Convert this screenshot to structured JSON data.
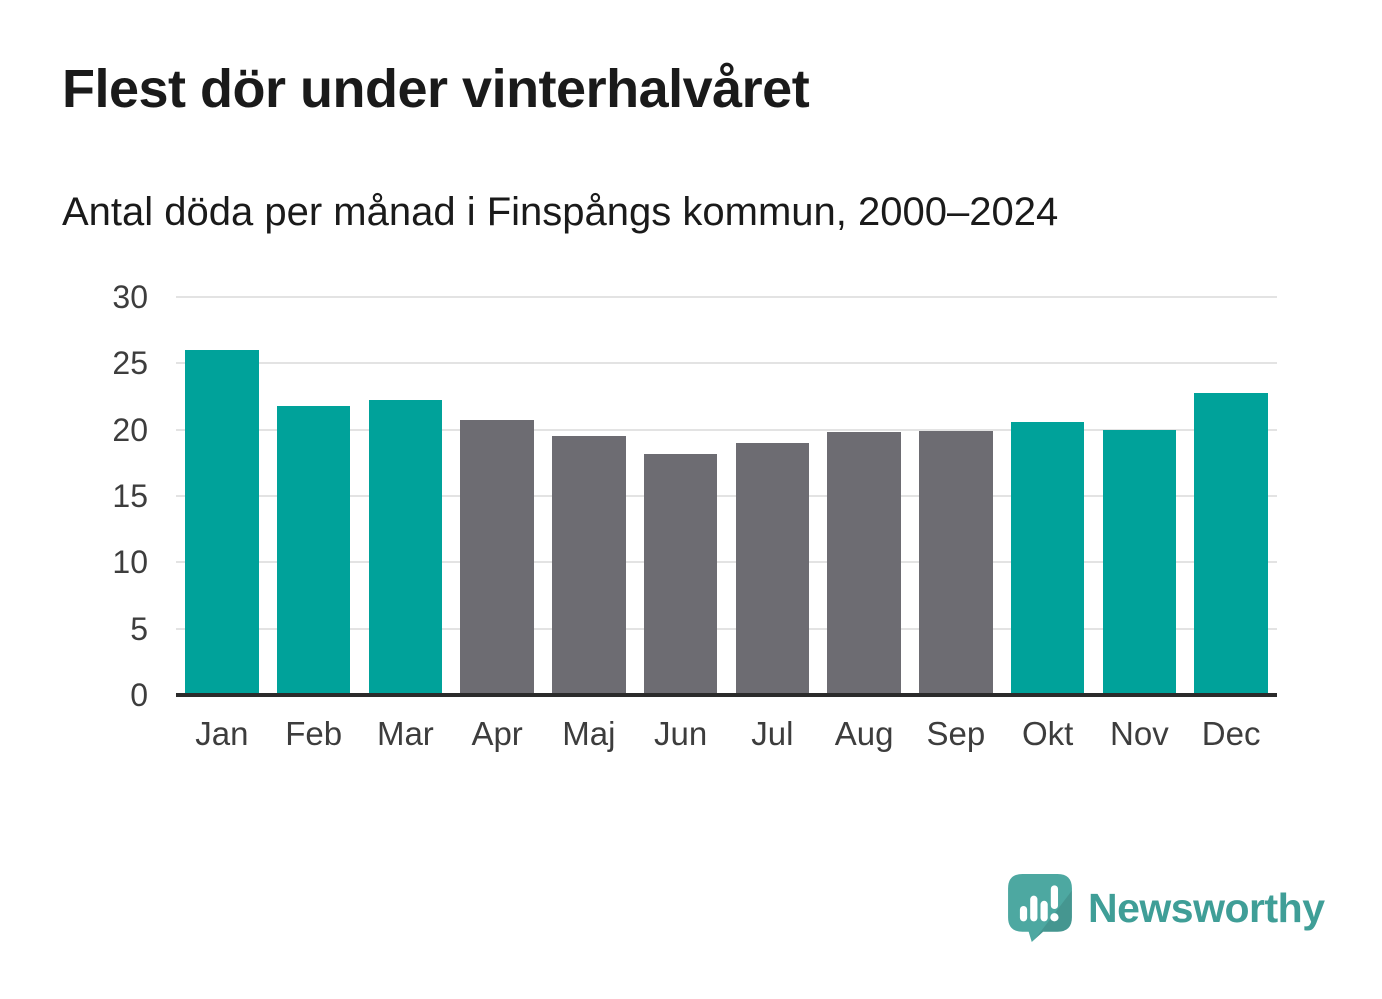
{
  "header": {
    "title": "Flest dör under vinterhalvåret",
    "subtitle": "Antal döda per månad i Finspångs kommun, 2000–2024"
  },
  "chart_data": {
    "type": "bar",
    "title": "Flest dör under vinterhalvåret",
    "subtitle": "Antal döda per månad i Finspångs kommun, 2000–2024",
    "categories": [
      "Jan",
      "Feb",
      "Mar",
      "Apr",
      "Maj",
      "Jun",
      "Jul",
      "Aug",
      "Sep",
      "Okt",
      "Nov",
      "Dec"
    ],
    "values": [
      26.0,
      21.8,
      22.2,
      20.7,
      19.5,
      18.2,
      19.0,
      19.8,
      19.9,
      20.6,
      20.0,
      22.8
    ],
    "highlighted": [
      true,
      true,
      true,
      false,
      false,
      false,
      false,
      false,
      false,
      true,
      true,
      true
    ],
    "xlabel": "",
    "ylabel": "",
    "ylim": [
      0,
      30
    ],
    "yticks": [
      0,
      5,
      10,
      15,
      20,
      25,
      30
    ],
    "grid": true,
    "legend": false
  },
  "colors": {
    "bar_highlight": "#00a29a",
    "bar_muted": "#6d6c72",
    "gridline": "#e3e3e3",
    "axis_line": "#2b2b2b",
    "axis_text": "#3d3d3d",
    "title_text": "#1a1a1a",
    "logo_bubble": "#4da8a1",
    "logo_text": "#3f9e97"
  },
  "footer": {
    "brand": "Newsworthy",
    "logo_icon": "newsworthy-speech-bubble-bar-chart-icon"
  }
}
